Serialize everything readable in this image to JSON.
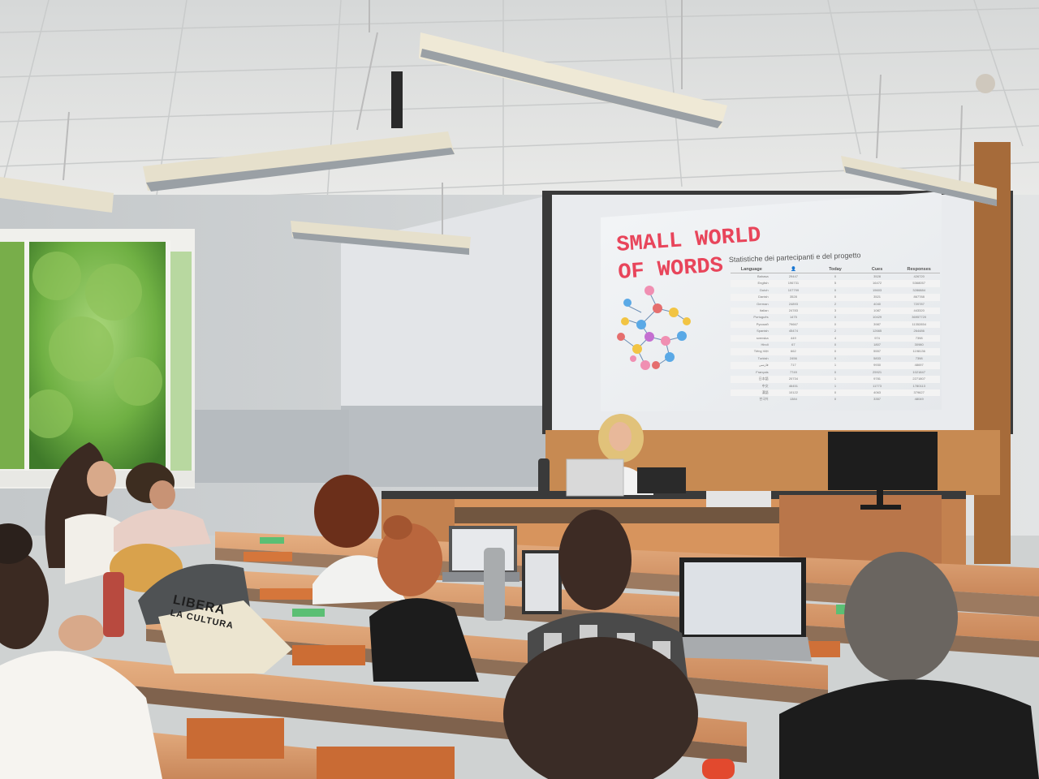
{
  "slide": {
    "title_line1": "SMALL WORLD",
    "title_line2": "OF WORDS",
    "subtitle": "Statistiche dei partecipanti e del progetto",
    "table": {
      "headers": [
        "Language",
        "👤",
        "Today",
        "Cues",
        "Responses"
      ],
      "rows": [
        [
          "Bahasa",
          "29447",
          "0",
          "3528",
          "426720"
        ],
        [
          "English",
          "196731",
          "5",
          "16472",
          "5368057"
        ],
        [
          "Dutch",
          "107799",
          "0",
          "15603",
          "3286884"
        ],
        [
          "Danish",
          "3528",
          "0",
          "3521",
          "867788"
        ],
        [
          "German",
          "24893",
          "2",
          "4040",
          "720787"
        ],
        [
          "Italian",
          "24783",
          "3",
          "1087",
          "443320"
        ],
        [
          "Português",
          "1475",
          "0",
          "10429",
          "36957720"
        ],
        [
          "Русский",
          "79667",
          "0",
          "3987",
          "11352854"
        ],
        [
          "Spanish",
          "45474",
          "2",
          "12665",
          "264486"
        ],
        [
          "svenska",
          "449",
          "4",
          "974",
          "7398"
        ],
        [
          "Hindi",
          "67",
          "0",
          "1807",
          "30980"
        ],
        [
          "Tiếng Việt",
          "662",
          "0",
          "5557",
          "1198136"
        ],
        [
          "Turkish",
          "2456",
          "0",
          "5833",
          "7398"
        ],
        [
          "فارسی",
          "717",
          "1",
          "9930",
          "48697"
        ],
        [
          "Français",
          "7749",
          "0",
          "25921",
          "1021847"
        ],
        [
          "日本語",
          "20734",
          "1",
          "9781",
          "2271807"
        ],
        [
          "中文",
          "46451",
          "1",
          "11773",
          "1780113"
        ],
        [
          "漢語",
          "10122",
          "0",
          "4063",
          "379627"
        ],
        [
          "한국어",
          "1384",
          "0",
          "3357",
          "48049"
        ]
      ]
    }
  },
  "tote_bag": {
    "text_line1": "LIBERA",
    "text_line2": "LA CULTURA"
  },
  "colors": {
    "slide_title": "#e8455b",
    "slide_bg": "#f7f8fa",
    "wall": "#d7dadb",
    "desk_wood": "#d99a63",
    "ceiling": "#ececec",
    "tree_green": "#6fb043"
  }
}
